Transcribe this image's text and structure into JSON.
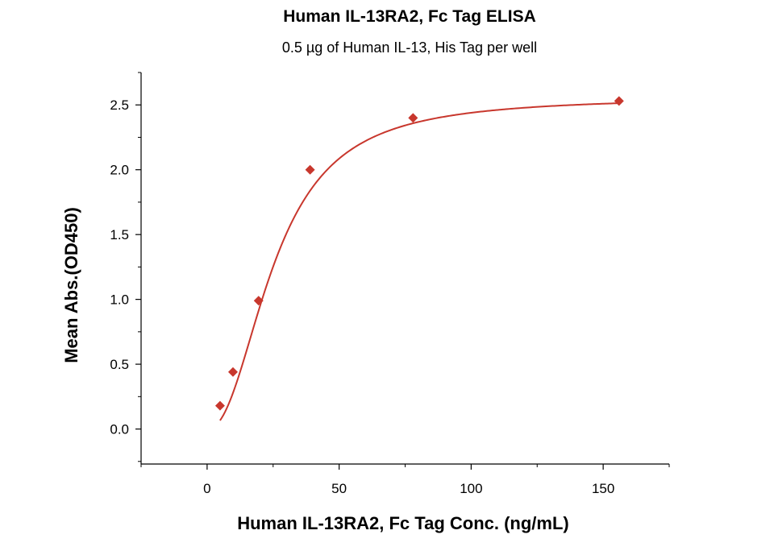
{
  "chart_data": {
    "type": "scatter",
    "title": "Human IL-13RA2, Fc Tag ELISA",
    "subtitle": "0.5 µg of Human IL-13, His Tag per well",
    "xlabel": "Human IL-13RA2, Fc Tag Conc. (ng/mL)",
    "ylabel": "Mean Abs.(OD450)",
    "xlim": [
      -25,
      175
    ],
    "ylim": [
      -0.27,
      2.75
    ],
    "x_ticks": [
      0,
      50,
      100,
      150
    ],
    "x_tick_labels": [
      "0",
      "50",
      "100",
      "150"
    ],
    "y_ticks": [
      0.0,
      0.5,
      1.0,
      1.5,
      2.0,
      2.5
    ],
    "y_tick_labels": [
      "0.0",
      "0.5",
      "1.0",
      "1.5",
      "2.0",
      "2.5"
    ],
    "grid": false,
    "legend": "none",
    "series": [
      {
        "x": [
          4.9,
          9.8,
          19.5,
          39,
          78,
          156
        ],
        "y": [
          0.18,
          0.44,
          0.99,
          2.0,
          2.4,
          2.53
        ],
        "color": "#c8372d",
        "marker": "diamond",
        "fit": "4PL"
      }
    ],
    "fit_params": {
      "bottom": 0.0,
      "top": 2.56,
      "ec50": 25.5,
      "hill": 2.2
    }
  }
}
